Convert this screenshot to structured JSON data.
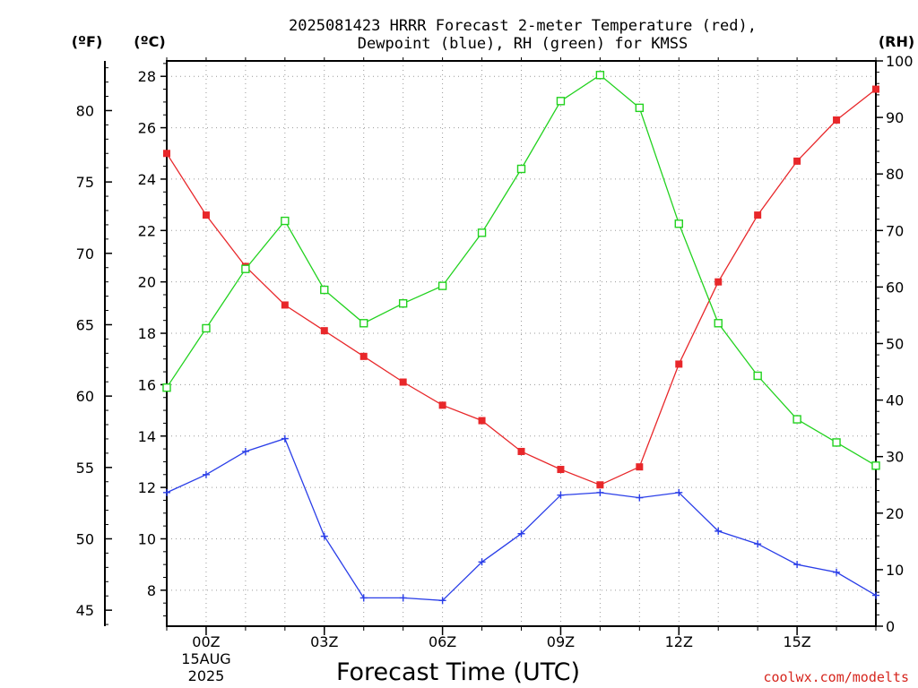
{
  "colors": {
    "temperature": "#e8272a",
    "dewpoint": "#2a3ee8",
    "rh": "#22d21f",
    "grid": "#9a9a9a",
    "credit": "#d6261e"
  },
  "chart_data": {
    "type": "line",
    "title": "2025081423 HRRR Forecast 2-meter Temperature (red),",
    "subtitle": "Dewpoint (blue), RH (green) for KMSS",
    "xlabel": "Forecast Time (UTC)",
    "credit": "coolwx.com/modelts",
    "units": {
      "fahrenheit": "(ºF)",
      "celsius": "(ºC)",
      "rh": "(RH)"
    },
    "x_hours": [
      -1,
      0,
      1,
      2,
      3,
      4,
      5,
      6,
      7,
      8,
      9,
      10,
      11,
      12,
      13,
      14,
      15,
      16,
      17
    ],
    "x_range": [
      -1,
      17
    ],
    "x_ticks": [
      {
        "hour": 0,
        "label": "00Z"
      },
      {
        "hour": 3,
        "label": "03Z"
      },
      {
        "hour": 6,
        "label": "06Z"
      },
      {
        "hour": 9,
        "label": "09Z"
      },
      {
        "hour": 12,
        "label": "12Z"
      },
      {
        "hour": 15,
        "label": "15Z"
      }
    ],
    "date_label": {
      "line1": "15AUG",
      "line2": "2025"
    },
    "celsius_axis": {
      "range": [
        6.6,
        28.6
      ],
      "ticks": [
        8,
        10,
        12,
        14,
        16,
        18,
        20,
        22,
        24,
        26,
        28
      ]
    },
    "fahrenheit_ticks": [
      45,
      50,
      55,
      60,
      65,
      70,
      75,
      80
    ],
    "rh_axis": {
      "range": [
        0,
        100
      ],
      "ticks": [
        0,
        10,
        20,
        30,
        40,
        50,
        60,
        70,
        80,
        90,
        100
      ]
    },
    "grid": true,
    "series": [
      {
        "name": "Temperature",
        "axis": "celsius",
        "marker": "filled-square",
        "values": [
          25.0,
          22.6,
          20.6,
          19.1,
          18.1,
          17.1,
          16.1,
          15.2,
          14.6,
          13.4,
          12.7,
          12.1,
          12.8,
          16.8,
          20.0,
          22.6,
          24.7,
          26.3,
          27.5
        ]
      },
      {
        "name": "Dewpoint",
        "axis": "celsius",
        "marker": "plus",
        "values": [
          11.8,
          12.5,
          13.4,
          13.9,
          10.1,
          7.7,
          7.7,
          7.6,
          9.1,
          10.2,
          11.7,
          11.8,
          11.6,
          11.8,
          10.3,
          9.8,
          9.0,
          8.7,
          7.8
        ]
      },
      {
        "name": "RH",
        "axis": "rh",
        "marker": "open-square",
        "values": [
          42.2,
          52.7,
          63.2,
          71.7,
          59.5,
          53.6,
          57.1,
          60.2,
          69.6,
          80.9,
          92.9,
          97.5,
          91.7,
          71.2,
          53.6,
          44.3,
          36.6,
          32.5,
          28.4
        ]
      }
    ]
  }
}
